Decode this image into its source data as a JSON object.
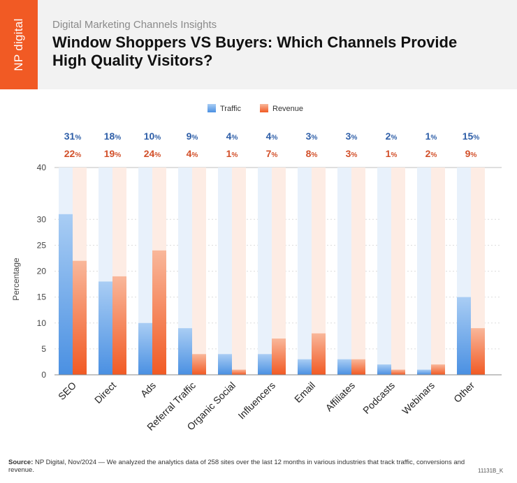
{
  "brand": {
    "logo_text": "NP digital"
  },
  "header": {
    "subtitle": "Digital Marketing Channels Insights",
    "title": "Window Shoppers VS Buyers: Which Channels Provide High Quality Visitors?"
  },
  "footer": {
    "source_label": "Source:",
    "source_text": " NP Digital, Nov/2024 — We analyzed the analytics data of 258 sites over the last 12 months in various industries that track traffic, conversions and revenue.",
    "code": "11131B_K"
  },
  "colors": {
    "traffic": "#4a90e2",
    "traffic_light": "#a9cdf4",
    "revenue": "#f15a24",
    "revenue_light": "#f9b79a",
    "traffic_label": "#2f5fa8",
    "revenue_label": "#d2502a"
  },
  "chart_data": {
    "type": "bar",
    "categories": [
      "SEO",
      "Direct",
      "Ads",
      "Referral Traffic",
      "Organic Social",
      "Influencers",
      "Email",
      "Affiliates",
      "Podcasts",
      "Webinars",
      "Other"
    ],
    "series": [
      {
        "name": "Traffic",
        "values": [
          31,
          18,
          10,
          9,
          4,
          4,
          3,
          3,
          2,
          1,
          15
        ]
      },
      {
        "name": "Revenue",
        "values": [
          22,
          19,
          24,
          4,
          1,
          7,
          8,
          3,
          1,
          2,
          9
        ]
      }
    ],
    "ylabel": "Percentage",
    "xlabel": "",
    "ylim": [
      0,
      40
    ],
    "yticks": [
      0,
      5,
      10,
      15,
      20,
      25,
      30,
      40
    ],
    "legend_position": "top-center",
    "value_suffix": "%",
    "grid": true
  }
}
